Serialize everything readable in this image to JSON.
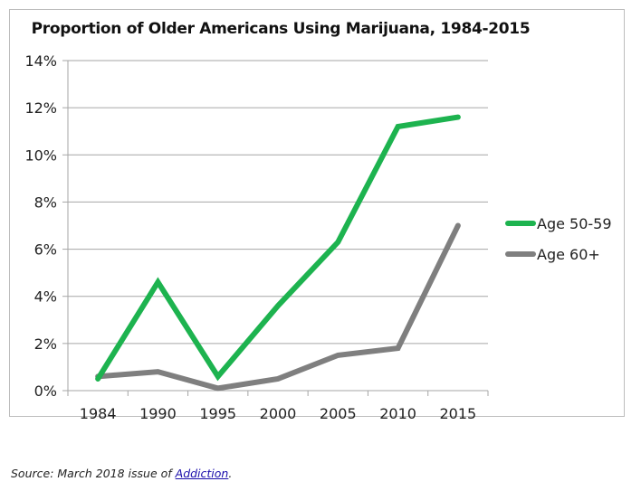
{
  "chart_data": {
    "type": "line",
    "title": "Proportion of Older Americans Using Marijuana, 1984-2015",
    "xlabel": "",
    "ylabel": "",
    "categories": [
      "1984",
      "1990",
      "1995",
      "2000",
      "2005",
      "2010",
      "2015"
    ],
    "ylim": [
      0,
      14
    ],
    "yticks": [
      0,
      2,
      4,
      6,
      8,
      10,
      12,
      14
    ],
    "ytick_labels": [
      "0%",
      "2%",
      "4%",
      "6%",
      "8%",
      "10%",
      "12%",
      "14%"
    ],
    "grid": true,
    "legend_position": "right",
    "series": [
      {
        "name": "Age 50-59",
        "color": "#1db34f",
        "values": [
          0.5,
          4.6,
          0.6,
          3.6,
          6.3,
          11.2,
          11.6
        ]
      },
      {
        "name": "Age 60+",
        "color": "#7f7f7f",
        "values": [
          0.6,
          0.8,
          0.1,
          0.5,
          1.5,
          1.8,
          7.0
        ]
      }
    ]
  },
  "source": {
    "prefix": "Source: March 2018 issue of ",
    "link_text": "Addiction",
    "suffix": "."
  }
}
